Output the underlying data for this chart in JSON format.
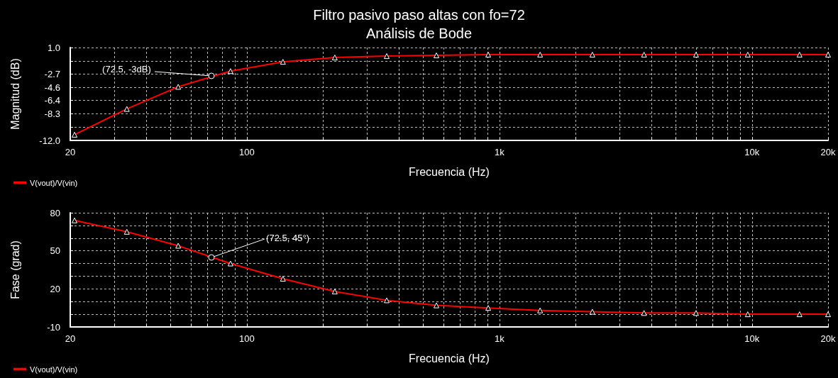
{
  "chart_data": [
    {
      "type": "line",
      "title": "Filtro pasivo paso altas con fo=72",
      "subtitle": "Análisis de Bode",
      "xlabel": "Frecuencia (Hz)",
      "ylabel": "Magnitud (dB)",
      "x": [
        20.8,
        33.5,
        53.5,
        86.2,
        139,
        223,
        358,
        563,
        903,
        1449,
        2333,
        3736,
        6002,
        9620,
        15420,
        20000
      ],
      "series": [
        {
          "name": "V(vout)/V(vin)",
          "color": "#ff0000",
          "values": [
            -11.2,
            -7.6,
            -4.5,
            -2.3,
            -1.0,
            -0.4,
            -0.2,
            -0.1,
            0.0,
            0.0,
            0.0,
            0.0,
            0.0,
            0.0,
            0.0,
            0.0
          ]
        }
      ],
      "log": "x",
      "xlim": [
        20,
        20000
      ],
      "xticks": [
        {
          "value": 20,
          "label": "20"
        },
        {
          "value": 30,
          "label": null
        },
        {
          "value": 40,
          "label": null
        },
        {
          "value": 50,
          "label": null
        },
        {
          "value": 60,
          "label": null
        },
        {
          "value": 70,
          "label": null
        },
        {
          "value": 80,
          "label": null
        },
        {
          "value": 90,
          "label": null
        },
        {
          "value": 100,
          "label": "100"
        },
        {
          "value": 200,
          "label": null
        },
        {
          "value": 300,
          "label": null
        },
        {
          "value": 400,
          "label": null
        },
        {
          "value": 500,
          "label": null
        },
        {
          "value": 600,
          "label": null
        },
        {
          "value": 700,
          "label": null
        },
        {
          "value": 800,
          "label": null
        },
        {
          "value": 900,
          "label": null
        },
        {
          "value": 1000,
          "label": "1k"
        },
        {
          "value": 2000,
          "label": null
        },
        {
          "value": 3000,
          "label": null
        },
        {
          "value": 4000,
          "label": null
        },
        {
          "value": 5000,
          "label": null
        },
        {
          "value": 6000,
          "label": null
        },
        {
          "value": 7000,
          "label": null
        },
        {
          "value": 8000,
          "label": null
        },
        {
          "value": 9000,
          "label": null
        },
        {
          "value": 10000,
          "label": "10k"
        },
        {
          "value": 20000,
          "label": "20k"
        }
      ],
      "ylim": [
        -12.0,
        1.0
      ],
      "yticks": [
        {
          "value": 1.0,
          "label": "1.0"
        },
        {
          "value": -0.9,
          "label": null
        },
        {
          "value": -2.7,
          "label": "-2.7"
        },
        {
          "value": -4.6,
          "label": "-4.6"
        },
        {
          "value": -6.4,
          "label": "-6.4"
        },
        {
          "value": -8.3,
          "label": "-8.3"
        },
        {
          "value": -10.1,
          "label": null
        },
        {
          "value": -12.0,
          "label": "-12.0"
        }
      ],
      "grid": true,
      "legend": "bottom left",
      "marker": "triangle",
      "line_style": "solid",
      "annotations": [
        {
          "text": "(72.5, -3dB)",
          "x": 72.5,
          "y": -3
        }
      ]
    },
    {
      "type": "line",
      "xlabel": "Frecuencia (Hz)",
      "ylabel": "Fase (grad)",
      "x": [
        20.8,
        33.5,
        53.5,
        86.2,
        139,
        223,
        358,
        563,
        903,
        1449,
        2333,
        3736,
        6002,
        9620,
        15420,
        20000
      ],
      "series": [
        {
          "name": "V(vout)/V(vin)",
          "color": "#ff0000",
          "values": [
            74,
            65,
            54,
            40,
            28,
            18,
            11,
            7,
            5,
            3,
            2,
            1,
            1,
            0,
            0,
            0
          ]
        }
      ],
      "log": "x",
      "xlim": [
        20,
        20000
      ],
      "xticks": [
        {
          "value": 20,
          "label": "20"
        },
        {
          "value": 30,
          "label": null
        },
        {
          "value": 40,
          "label": null
        },
        {
          "value": 50,
          "label": null
        },
        {
          "value": 60,
          "label": null
        },
        {
          "value": 70,
          "label": null
        },
        {
          "value": 80,
          "label": null
        },
        {
          "value": 90,
          "label": null
        },
        {
          "value": 100,
          "label": "100"
        },
        {
          "value": 200,
          "label": null
        },
        {
          "value": 300,
          "label": null
        },
        {
          "value": 400,
          "label": null
        },
        {
          "value": 500,
          "label": null
        },
        {
          "value": 600,
          "label": null
        },
        {
          "value": 700,
          "label": null
        },
        {
          "value": 800,
          "label": null
        },
        {
          "value": 900,
          "label": null
        },
        {
          "value": 1000,
          "label": "1k"
        },
        {
          "value": 2000,
          "label": null
        },
        {
          "value": 3000,
          "label": null
        },
        {
          "value": 4000,
          "label": null
        },
        {
          "value": 5000,
          "label": null
        },
        {
          "value": 6000,
          "label": null
        },
        {
          "value": 7000,
          "label": null
        },
        {
          "value": 8000,
          "label": null
        },
        {
          "value": 9000,
          "label": null
        },
        {
          "value": 10000,
          "label": "10k"
        },
        {
          "value": 20000,
          "label": "20k"
        }
      ],
      "ylim": [
        -10,
        80
      ],
      "yticks": [
        {
          "value": 80,
          "label": "80"
        },
        {
          "value": 70,
          "label": null
        },
        {
          "value": 60,
          "label": null
        },
        {
          "value": 50,
          "label": "50"
        },
        {
          "value": 40,
          "label": null
        },
        {
          "value": 30,
          "label": null
        },
        {
          "value": 20,
          "label": "20"
        },
        {
          "value": 10,
          "label": null
        },
        {
          "value": 0,
          "label": null
        },
        {
          "value": -10,
          "label": "-10"
        }
      ],
      "grid": true,
      "legend": "bottom left",
      "marker": "triangle",
      "line_style": "solid",
      "annotations": [
        {
          "text": "(72.5, 45°)",
          "x": 72.5,
          "y": 45
        }
      ]
    }
  ]
}
